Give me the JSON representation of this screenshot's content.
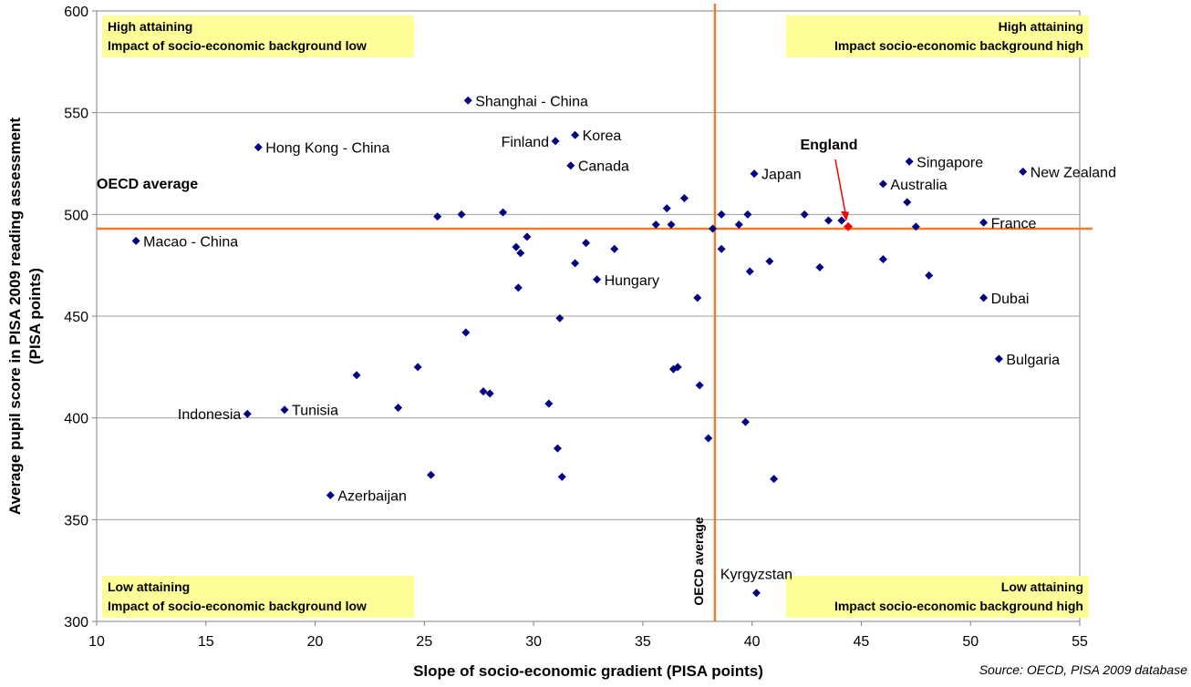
{
  "chart_data": {
    "type": "scatter",
    "title": "",
    "xlabel": "Slope of socio-economic gradient (PISA points)",
    "ylabel_line1": "Average pupil score in PISA 2009 reading assessment",
    "ylabel_line2": "(PISA points)",
    "xlim": [
      10,
      55
    ],
    "ylim": [
      300,
      600
    ],
    "xticks": [
      "10",
      "15",
      "20",
      "25",
      "30",
      "35",
      "40",
      "45",
      "50",
      "55"
    ],
    "yticks": [
      "300",
      "350",
      "400",
      "450",
      "500",
      "550",
      "600"
    ],
    "grid": "horizontal",
    "colors": {
      "points": "#000080",
      "reference": "#ED7D31",
      "highlight": "#FF0000",
      "quadrant_fill": "#FFFF99"
    },
    "reference_lines": {
      "x": 38.3,
      "y": 493,
      "x_label": "OECD average",
      "y_label": "OECD average"
    },
    "quadrants": {
      "top_left": [
        "High attaining",
        "Impact of socio-economic background low"
      ],
      "top_right": [
        "High attaining",
        "Impact socio-economic background high"
      ],
      "bottom_left": [
        "Low attaining",
        "Impact of socio-economic background low"
      ],
      "bottom_right": [
        "Low attaining",
        "Impact socio-economic background high"
      ]
    },
    "highlight": {
      "label": "England",
      "x": 44.4,
      "y": 494
    },
    "points": [
      {
        "x": 27.0,
        "y": 556,
        "label": "Shanghai - China"
      },
      {
        "x": 17.4,
        "y": 533,
        "label": "Hong Kong - China"
      },
      {
        "x": 31.0,
        "y": 536,
        "label": "Finland"
      },
      {
        "x": 31.9,
        "y": 539,
        "label": "Korea"
      },
      {
        "x": 31.7,
        "y": 524,
        "label": "Canada"
      },
      {
        "x": 40.1,
        "y": 520,
        "label": "Japan"
      },
      {
        "x": 47.2,
        "y": 526,
        "label": "Singapore"
      },
      {
        "x": 46.0,
        "y": 515,
        "label": "Australia"
      },
      {
        "x": 52.4,
        "y": 521,
        "label": "New Zealand"
      },
      {
        "x": 50.6,
        "y": 496,
        "label": "France"
      },
      {
        "x": 11.8,
        "y": 487,
        "label": "Macao - China"
      },
      {
        "x": 32.9,
        "y": 468,
        "label": "Hungary"
      },
      {
        "x": 50.6,
        "y": 459,
        "label": "Dubai"
      },
      {
        "x": 51.3,
        "y": 429,
        "label": "Bulgaria"
      },
      {
        "x": 16.9,
        "y": 402,
        "label": "Indonesia"
      },
      {
        "x": 18.6,
        "y": 404,
        "label": "Tunisia"
      },
      {
        "x": 20.7,
        "y": 362,
        "label": "Azerbaijan"
      },
      {
        "x": 40.2,
        "y": 314,
        "label": "Kyrgyzstan"
      },
      {
        "x": 25.6,
        "y": 499,
        "label": ""
      },
      {
        "x": 26.7,
        "y": 500,
        "label": ""
      },
      {
        "x": 28.6,
        "y": 501,
        "label": ""
      },
      {
        "x": 29.2,
        "y": 484,
        "label": ""
      },
      {
        "x": 29.4,
        "y": 481,
        "label": ""
      },
      {
        "x": 29.7,
        "y": 489,
        "label": ""
      },
      {
        "x": 29.3,
        "y": 464,
        "label": ""
      },
      {
        "x": 32.4,
        "y": 486,
        "label": ""
      },
      {
        "x": 33.7,
        "y": 483,
        "label": ""
      },
      {
        "x": 31.9,
        "y": 476,
        "label": ""
      },
      {
        "x": 31.2,
        "y": 449,
        "label": ""
      },
      {
        "x": 26.9,
        "y": 442,
        "label": ""
      },
      {
        "x": 24.7,
        "y": 425,
        "label": ""
      },
      {
        "x": 21.9,
        "y": 421,
        "label": ""
      },
      {
        "x": 23.8,
        "y": 405,
        "label": ""
      },
      {
        "x": 27.7,
        "y": 413,
        "label": ""
      },
      {
        "x": 28.0,
        "y": 412,
        "label": ""
      },
      {
        "x": 30.7,
        "y": 407,
        "label": ""
      },
      {
        "x": 31.1,
        "y": 385,
        "label": ""
      },
      {
        "x": 31.3,
        "y": 371,
        "label": ""
      },
      {
        "x": 25.3,
        "y": 372,
        "label": ""
      },
      {
        "x": 35.6,
        "y": 495,
        "label": ""
      },
      {
        "x": 36.1,
        "y": 503,
        "label": ""
      },
      {
        "x": 36.3,
        "y": 495,
        "label": ""
      },
      {
        "x": 36.9,
        "y": 508,
        "label": ""
      },
      {
        "x": 38.2,
        "y": 493,
        "label": ""
      },
      {
        "x": 38.6,
        "y": 500,
        "label": ""
      },
      {
        "x": 39.4,
        "y": 495,
        "label": ""
      },
      {
        "x": 39.8,
        "y": 500,
        "label": ""
      },
      {
        "x": 38.6,
        "y": 483,
        "label": ""
      },
      {
        "x": 39.9,
        "y": 472,
        "label": ""
      },
      {
        "x": 40.8,
        "y": 477,
        "label": ""
      },
      {
        "x": 37.5,
        "y": 459,
        "label": ""
      },
      {
        "x": 37.6,
        "y": 416,
        "label": ""
      },
      {
        "x": 36.4,
        "y": 424,
        "label": ""
      },
      {
        "x": 36.6,
        "y": 425,
        "label": ""
      },
      {
        "x": 38.0,
        "y": 390,
        "label": ""
      },
      {
        "x": 39.7,
        "y": 398,
        "label": ""
      },
      {
        "x": 41.0,
        "y": 370,
        "label": ""
      },
      {
        "x": 42.4,
        "y": 500,
        "label": ""
      },
      {
        "x": 43.5,
        "y": 497,
        "label": ""
      },
      {
        "x": 44.1,
        "y": 497,
        "label": ""
      },
      {
        "x": 43.1,
        "y": 474,
        "label": ""
      },
      {
        "x": 46.0,
        "y": 478,
        "label": ""
      },
      {
        "x": 47.1,
        "y": 506,
        "label": ""
      },
      {
        "x": 47.5,
        "y": 494,
        "label": ""
      },
      {
        "x": 48.1,
        "y": 470,
        "label": ""
      }
    ],
    "source": "Source: OECD, PISA 2009 database"
  }
}
